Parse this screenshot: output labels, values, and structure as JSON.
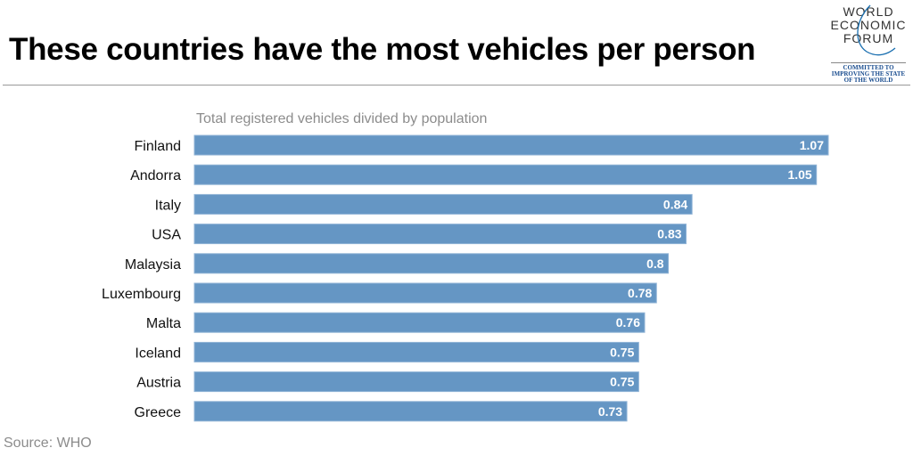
{
  "header": {
    "title": "These countries have the most vehicles per person",
    "logo": {
      "lines": [
        "WORLD",
        "ECONOMIC",
        "FORUM"
      ],
      "tagline": [
        "COMMITTED TO",
        "IMPROVING THE STATE",
        "OF THE WORLD"
      ]
    }
  },
  "footer": {
    "source": "Source: WHO"
  },
  "chart_data": {
    "type": "bar",
    "orientation": "horizontal",
    "title": "These countries have the most vehicles per person",
    "subtitle": "Total registered vehicles divided by population",
    "categories": [
      "Finland",
      "Andorra",
      "Italy",
      "USA",
      "Malaysia",
      "Luxembourg",
      "Malta",
      "Iceland",
      "Austria",
      "Greece"
    ],
    "values": [
      1.07,
      1.05,
      0.84,
      0.83,
      0.8,
      0.78,
      0.76,
      0.75,
      0.75,
      0.73
    ],
    "value_labels": [
      "1.07",
      "1.05",
      "0.84",
      "0.83",
      "0.8",
      "0.78",
      "0.76",
      "0.75",
      "0.75",
      "0.73"
    ],
    "xlabel": "",
    "ylabel": "",
    "xlim": [
      0,
      1.07
    ],
    "grid": false,
    "legend": "none",
    "bar_color": "#6596c4",
    "source": "Source: WHO"
  }
}
